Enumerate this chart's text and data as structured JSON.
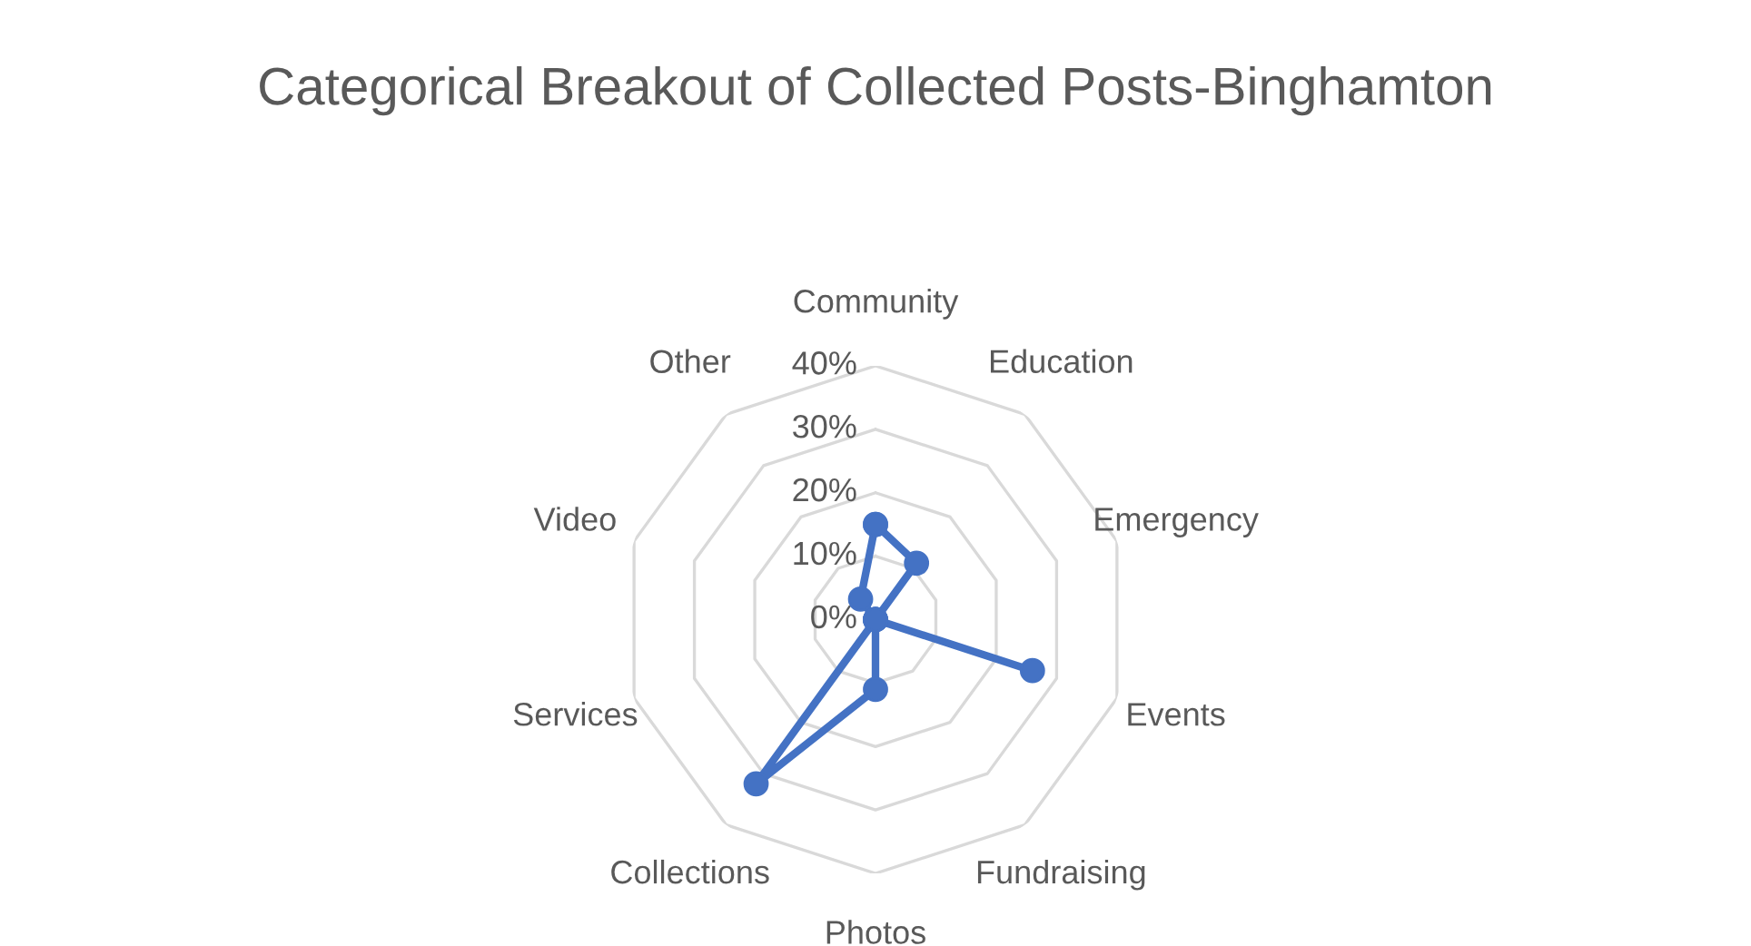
{
  "chart_data": {
    "type": "radar",
    "title": "Categorical Breakout of Collected Posts-Binghamton",
    "categories": [
      "Community",
      "Education",
      "Emergency",
      "Events",
      "Fundraising",
      "Photos",
      "Collections",
      "Services",
      "Video",
      "Other"
    ],
    "series": [
      {
        "color": "#4472c4",
        "values": [
          15,
          11,
          0,
          26,
          0,
          11,
          32,
          0,
          0,
          4
        ]
      }
    ],
    "ylim": [
      0,
      40
    ],
    "yticks": [
      {
        "value": 0,
        "label": "0%"
      },
      {
        "value": 10,
        "label": "10%"
      },
      {
        "value": 20,
        "label": "20%"
      },
      {
        "value": 30,
        "label": "30%"
      },
      {
        "value": 40,
        "label": "40%"
      }
    ],
    "marker": "circle",
    "grid": true,
    "legend": false
  }
}
